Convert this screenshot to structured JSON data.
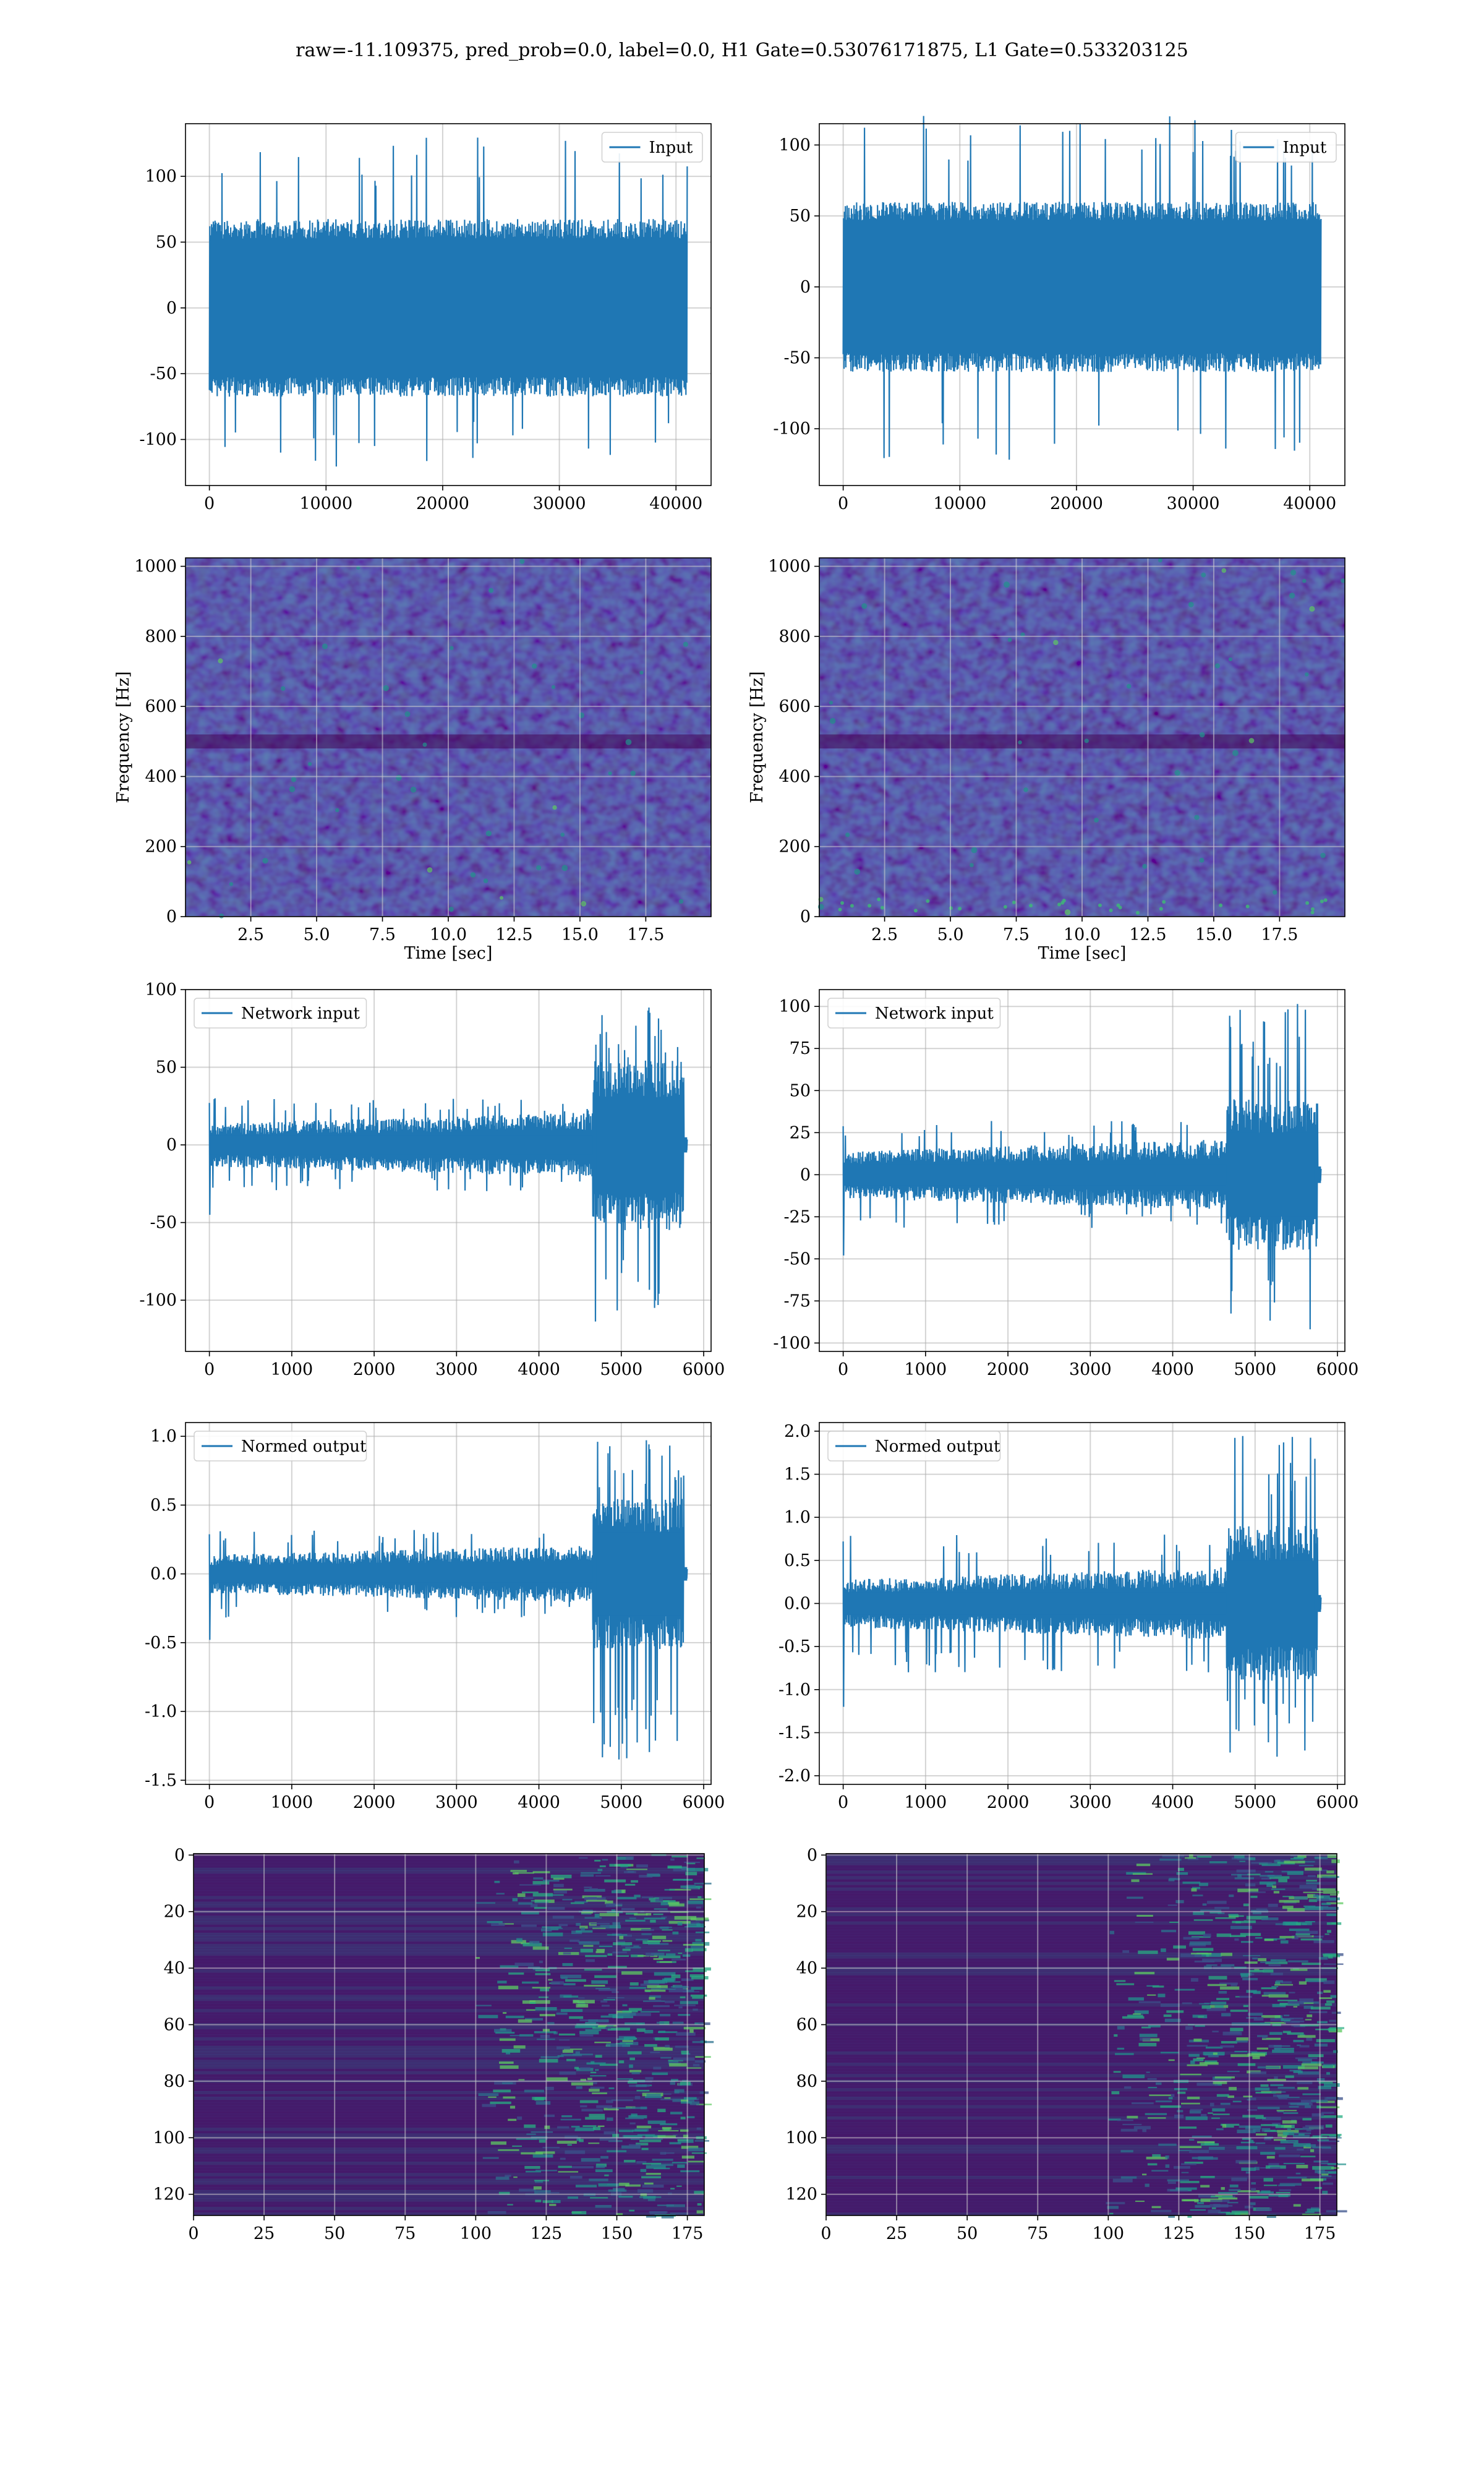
{
  "figure": {
    "suptitle": "raw=-11.109375, pred_prob=0.0, label=0.0, H1 Gate=0.53076171875, L1 Gate=0.533203125"
  },
  "colors": {
    "line": "#1f77b4",
    "grid": "#b0b0b0",
    "viridis_dark": "#440154"
  },
  "chart_data": [
    {
      "id": "input-h1",
      "type": "line",
      "legend": "Input",
      "legend_loc": "upper right",
      "grid": true,
      "xlim": [
        -2048,
        43008
      ],
      "ylim": [
        -135,
        140
      ],
      "xticks": [
        0,
        10000,
        20000,
        30000,
        40000
      ],
      "yticks": [
        -100,
        -50,
        0,
        50,
        100
      ],
      "series": [
        {
          "envelope": {
            "x_range": [
              0,
              40960
            ],
            "typical_lo": -65,
            "typical_hi": 70,
            "peak_lo": -122,
            "peak_hi": 132
          }
        }
      ]
    },
    {
      "id": "input-l1",
      "type": "line",
      "legend": "Input",
      "legend_loc": "upper right",
      "grid": true,
      "xlim": [
        -2048,
        43008
      ],
      "ylim": [
        -140,
        115
      ],
      "xticks": [
        0,
        10000,
        20000,
        30000,
        40000
      ],
      "yticks": [
        -100,
        -50,
        0,
        50,
        100
      ],
      "series": [
        {
          "envelope": {
            "x_range": [
              0,
              40960
            ],
            "typical_lo": -60,
            "typical_hi": 60,
            "peak_lo": -125,
            "peak_hi": 122
          }
        }
      ]
    },
    {
      "id": "spec-h1",
      "type": "heatmap",
      "xlabel": "Time [sec]",
      "ylabel": "Frequency [Hz]",
      "grid": true,
      "xlim": [
        0.02,
        19.98
      ],
      "ylim": [
        0,
        1024
      ],
      "xticks": [
        "2.5",
        "5.0",
        "7.5",
        "10.0",
        "12.5",
        "15.0",
        "17.5"
      ],
      "yticks": [
        "0",
        "200",
        "400",
        "600",
        "800",
        "1000"
      ]
    },
    {
      "id": "spec-l1",
      "type": "heatmap",
      "xlabel": "Time [sec]",
      "ylabel": "Frequency [Hz]",
      "grid": true,
      "xlim": [
        0.02,
        19.98
      ],
      "ylim": [
        0,
        1024
      ],
      "xticks": [
        "2.5",
        "5.0",
        "7.5",
        "10.0",
        "12.5",
        "15.0",
        "17.5"
      ],
      "yticks": [
        "0",
        "200",
        "400",
        "600",
        "800",
        "1000"
      ]
    },
    {
      "id": "netin-h1",
      "type": "line",
      "legend": "Network input",
      "legend_loc": "upper left",
      "grid": true,
      "xlim": [
        -290,
        6090
      ],
      "ylim": [
        -133,
        100
      ],
      "xticks": [
        0,
        1000,
        2000,
        3000,
        4000,
        5000,
        6000
      ],
      "yticks": [
        -100,
        -50,
        0,
        50,
        100
      ],
      "series": [
        {
          "envelope": {
            "x_range": [
              0,
              5800
            ],
            "quiet_amp": 14,
            "quiet_peak": 30,
            "burst_start": 4650,
            "burst_end": 5760,
            "burst_amp": 55,
            "burst_peak": 90,
            "min": -122,
            "tail_end": 5800
          }
        }
      ]
    },
    {
      "id": "netin-l1",
      "type": "line",
      "legend": "Network input",
      "legend_loc": "upper left",
      "grid": true,
      "xlim": [
        -290,
        6090
      ],
      "ylim": [
        -105,
        110
      ],
      "xticks": [
        0,
        1000,
        2000,
        3000,
        4000,
        5000,
        6000
      ],
      "yticks": [
        -100,
        -75,
        -50,
        -25,
        0,
        25,
        50,
        75,
        100
      ],
      "series": [
        {
          "envelope": {
            "x_range": [
              0,
              5800
            ],
            "quiet_amp": 14,
            "quiet_peak": 32,
            "burst_start": 4650,
            "burst_end": 5760,
            "burst_amp": 45,
            "burst_peak": 102,
            "min": -95,
            "tail_end": 5800
          }
        }
      ]
    },
    {
      "id": "normed-h1",
      "type": "line",
      "legend": "Normed output",
      "legend_loc": "upper left",
      "grid": true,
      "xlim": [
        -290,
        6090
      ],
      "ylim": [
        -1.53,
        1.1
      ],
      "xticks": [
        0,
        1000,
        2000,
        3000,
        4000,
        5000,
        6000
      ],
      "yticks": [
        -1.5,
        -1.0,
        -0.5,
        0.0,
        0.5,
        1.0
      ],
      "series": [
        {
          "envelope": {
            "x_range": [
              0,
              5800
            ],
            "quiet_amp": 0.14,
            "quiet_peak": 0.32,
            "burst_start": 4650,
            "burst_end": 5760,
            "burst_amp": 0.55,
            "burst_peak": 1.04,
            "min": -1.38,
            "tail_end": 5800
          }
        }
      ]
    },
    {
      "id": "normed-l1",
      "type": "line",
      "legend": "Normed output",
      "legend_loc": "upper left",
      "grid": true,
      "xlim": [
        -290,
        6090
      ],
      "ylim": [
        -2.1,
        2.1
      ],
      "xticks": [
        0,
        1000,
        2000,
        3000,
        4000,
        5000,
        6000
      ],
      "yticks": [
        -2.0,
        -1.5,
        -1.0,
        -0.5,
        0.0,
        0.5,
        1.0,
        1.5,
        2.0
      ],
      "series": [
        {
          "envelope": {
            "x_range": [
              0,
              5800
            ],
            "quiet_amp": 0.28,
            "quiet_peak": 0.8,
            "burst_start": 4650,
            "burst_end": 5760,
            "burst_amp": 0.9,
            "burst_peak": 2.0,
            "min": -1.85,
            "tail_end": 5800
          }
        }
      ]
    },
    {
      "id": "feat-h1",
      "type": "heatmap",
      "grid": true,
      "y_inverted": true,
      "xlim": [
        0,
        181
      ],
      "ylim": [
        127.5,
        -0.5
      ],
      "xticks": [
        "0",
        "25",
        "50",
        "75",
        "100",
        "125",
        "150",
        "175"
      ],
      "yticks": [
        "0",
        "20",
        "40",
        "60",
        "80",
        "100",
        "120"
      ]
    },
    {
      "id": "feat-l1",
      "type": "heatmap",
      "grid": true,
      "y_inverted": true,
      "xlim": [
        0,
        181
      ],
      "ylim": [
        127.5,
        -0.5
      ],
      "xticks": [
        "0",
        "25",
        "50",
        "75",
        "100",
        "125",
        "150",
        "175"
      ],
      "yticks": [
        "0",
        "20",
        "40",
        "60",
        "80",
        "100",
        "120"
      ]
    }
  ]
}
